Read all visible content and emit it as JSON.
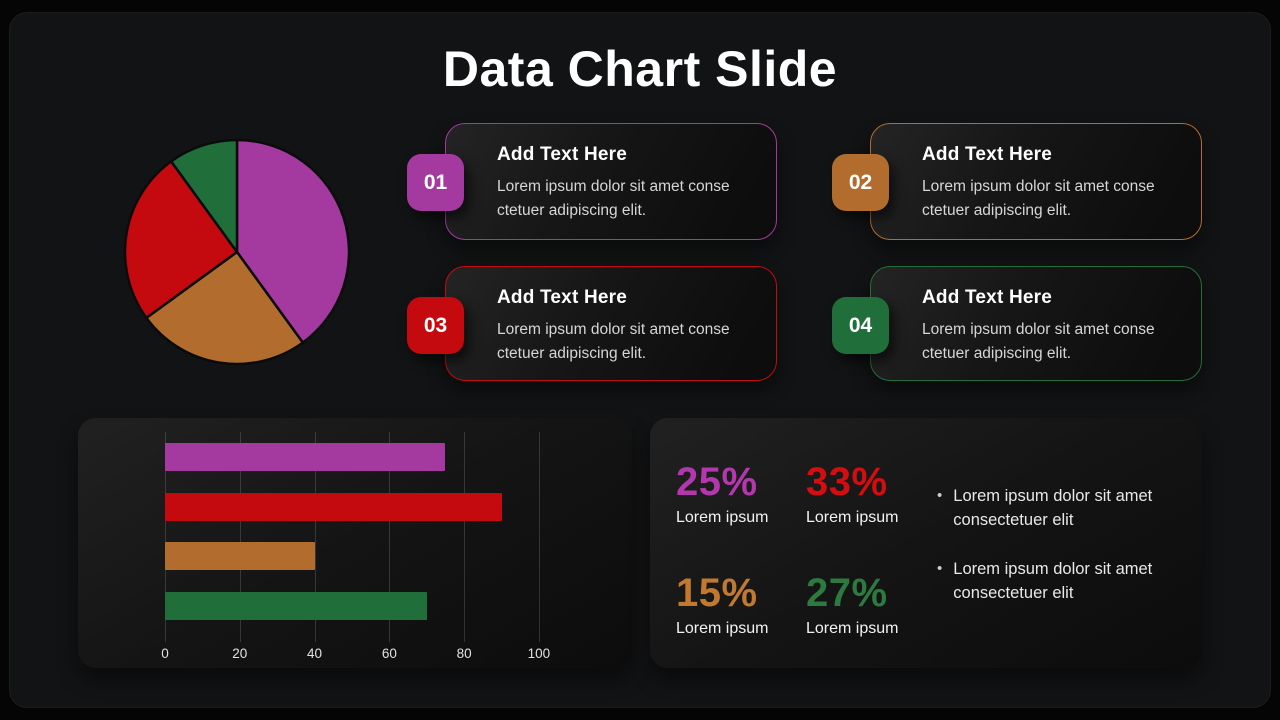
{
  "slide": {
    "title": "Data Chart Slide"
  },
  "colors": {
    "purple": "#a43aa0",
    "orange": "#b26d2e",
    "red": "#c40a0f",
    "green": "#206f3a",
    "purple_bright": "#b437ae",
    "orange_bright": "#c0792f",
    "red_bright": "#d40d11",
    "green_bright": "#2d7a40"
  },
  "bullet_marker": "•",
  "cards": [
    {
      "number": "01",
      "theme": "purple",
      "title": "Add Text Here",
      "body": "Lorem ipsum dolor sit amet conse ctetuer adipiscing elit."
    },
    {
      "number": "02",
      "theme": "orange",
      "title": "Add Text Here",
      "body": "Lorem ipsum dolor sit amet conse ctetuer adipiscing elit."
    },
    {
      "number": "03",
      "theme": "red",
      "title": "Add Text Here",
      "body": "Lorem ipsum dolor sit amet conse ctetuer adipiscing elit."
    },
    {
      "number": "04",
      "theme": "green",
      "title": "Add Text Here",
      "body": "Lorem ipsum dolor sit amet conse ctetuer adipiscing elit."
    }
  ],
  "chart_data": [
    {
      "type": "pie",
      "start": "top",
      "direction": "clockwise",
      "values": [
        40,
        25,
        25,
        10
      ],
      "colors": [
        "purple",
        "orange",
        "red",
        "green"
      ]
    },
    {
      "type": "bar",
      "orientation": "horizontal",
      "values": [
        75,
        90,
        40,
        70
      ],
      "colors": [
        "purple",
        "red",
        "orange",
        "green"
      ],
      "x_ticks": [
        0,
        20,
        40,
        60,
        80,
        100
      ],
      "xlim": [
        0,
        115
      ],
      "grid": true
    }
  ],
  "stats": [
    {
      "value": "25%",
      "label": "Lorem ipsum",
      "theme": "purple"
    },
    {
      "value": "33%",
      "label": "Lorem ipsum",
      "theme": "red"
    },
    {
      "value": "15%",
      "label": "Lorem ipsum",
      "theme": "orange"
    },
    {
      "value": "27%",
      "label": "Lorem ipsum",
      "theme": "green"
    }
  ],
  "bullets": [
    "Lorem ipsum dolor sit amet consectetuer elit",
    "Lorem ipsum dolor sit amet consectetuer elit"
  ]
}
